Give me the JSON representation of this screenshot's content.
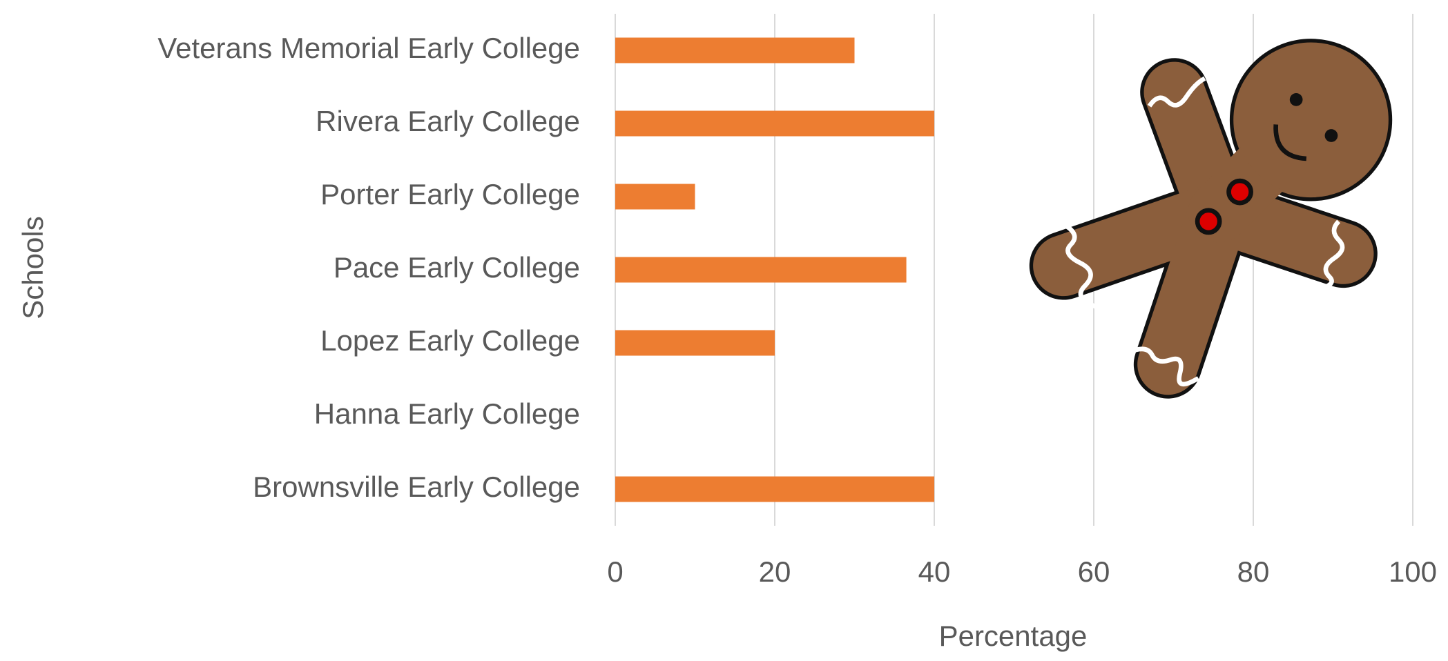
{
  "chart_data": {
    "type": "bar",
    "orientation": "horizontal",
    "categories": [
      "Veterans Memorial Early College",
      "Rivera Early College",
      "Porter Early College",
      "Pace Early College",
      "Lopez Early College",
      "Hanna Early College",
      "Brownsville Early College"
    ],
    "values": [
      30,
      40,
      10,
      36.5,
      20,
      0,
      40
    ],
    "color": "#ED7D31",
    "xlabel": "Percentage",
    "ylabel": "Schools",
    "xlim": [
      0,
      100
    ],
    "xticks": [
      0,
      20,
      40,
      60,
      80,
      100
    ],
    "grid": true
  }
}
